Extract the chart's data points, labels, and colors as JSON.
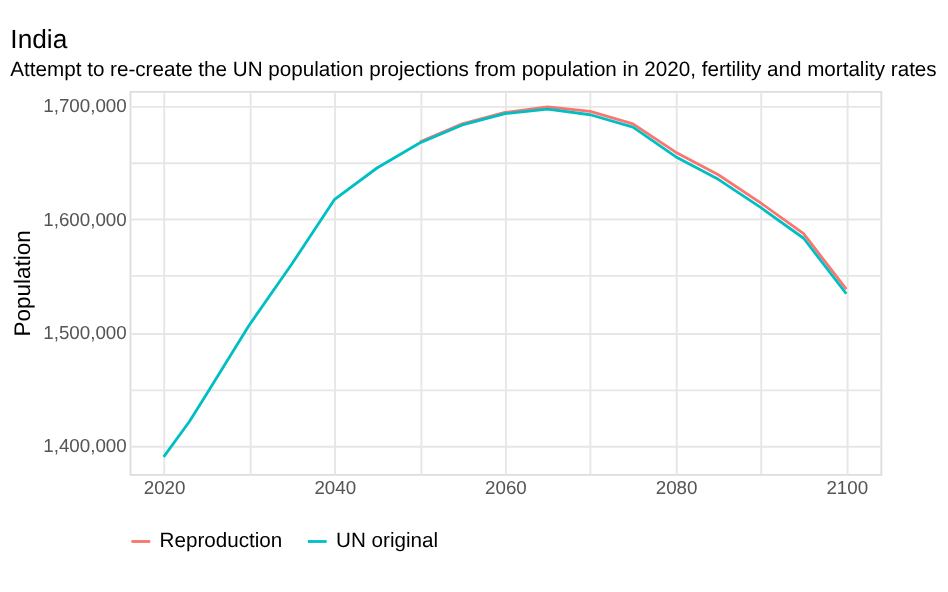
{
  "chart_data": {
    "type": "line",
    "title": "India",
    "subtitle": "Attempt to re-create the UN population projections from population in 2020, fertility and mortality rates",
    "ylabel": "Population",
    "x": [
      2020,
      2023,
      2025,
      2030,
      2035,
      2040,
      2045,
      2050,
      2055,
      2060,
      2065,
      2070,
      2075,
      2080,
      2085,
      2090,
      2095,
      2100
    ],
    "series": [
      {
        "name": "Reproduction",
        "color": "#f8766d",
        "values": [
          null,
          null,
          null,
          null,
          null,
          null,
          null,
          1668000,
          1684000,
          1694000,
          1699000,
          1695000,
          1684000,
          1659000,
          1639000,
          1614000,
          1587000,
          1538000
        ]
      },
      {
        "name": "UN original",
        "color": "#00bfc4",
        "values": [
          1390000,
          1421000,
          1445000,
          1506000,
          1560000,
          1617000,
          1645000,
          1667000,
          1683000,
          1693000,
          1697000,
          1692000,
          1681000,
          1655000,
          1635000,
          1610000,
          1583000,
          1534000
        ]
      }
    ],
    "xlim": [
      2016,
      2104
    ],
    "ylim": [
      1375000,
      1713000
    ],
    "xticks": [
      2020,
      {
        "value": 2030,
        "label": null
      },
      2040,
      {
        "value": 2050,
        "label": null
      },
      2060,
      {
        "value": 2070,
        "label": null
      },
      2080,
      {
        "value": 2090,
        "label": null
      },
      2100
    ],
    "yticks": [
      {
        "value": 1400000,
        "label": "1,400,000"
      },
      {
        "value": 1450000,
        "label": null
      },
      {
        "value": 1500000,
        "label": "1,500,000"
      },
      {
        "value": 1550000,
        "label": null
      },
      {
        "value": 1600000,
        "label": "1,600,000"
      },
      {
        "value": 1650000,
        "label": null
      },
      {
        "value": 1700000,
        "label": "1,700,000"
      }
    ],
    "grid": true,
    "legend": "bottom",
    "marker": "none",
    "line_style": "solid"
  }
}
